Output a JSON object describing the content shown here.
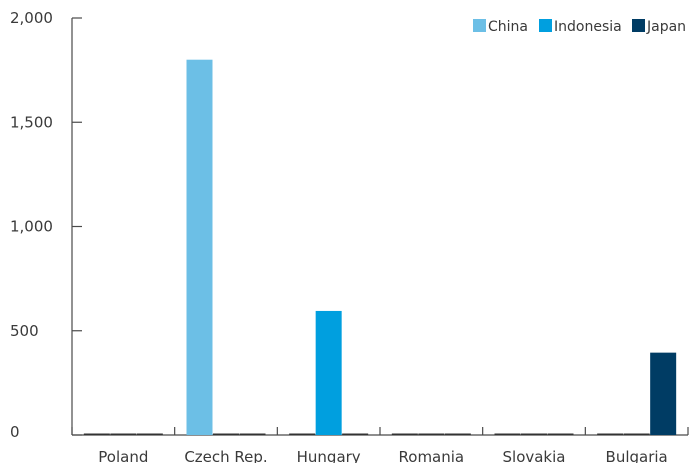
{
  "chart_data": {
    "type": "bar",
    "categories": [
      "Poland",
      "Czech Rep.",
      "Hungary",
      "Romania",
      "Slovakia",
      "Bulgaria"
    ],
    "series": [
      {
        "name": "China",
        "color": "#6cbfe6",
        "values": [
          0,
          1800,
          0,
          0,
          0,
          0
        ]
      },
      {
        "name": "Indonesia",
        "color": "#009fdf",
        "values": [
          0,
          0,
          595,
          0,
          0,
          0
        ]
      },
      {
        "name": "Japan",
        "color": "#003c64",
        "values": [
          0,
          0,
          0,
          0,
          0,
          395
        ]
      }
    ],
    "title": "",
    "xlabel": "",
    "ylabel": "",
    "ylim": [
      0,
      2000
    ],
    "yticks": [
      0,
      500,
      1000,
      1500,
      2000
    ],
    "ytick_labels": [
      "0",
      "500",
      "1,000",
      "1,500",
      "2,000"
    ],
    "legend_position": "top-right",
    "grid": false,
    "zero_bar_color": "#333333"
  }
}
